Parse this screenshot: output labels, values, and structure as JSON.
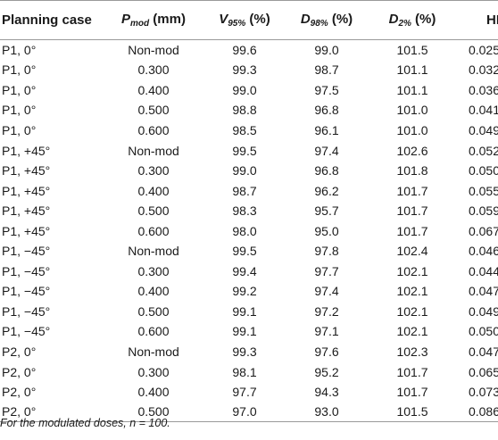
{
  "table": {
    "headers": {
      "planning_case": "Planning case",
      "pmod": {
        "sym": "P",
        "sub": "mod",
        "rest": " (mm)"
      },
      "v95": {
        "sym": "V",
        "sub": "95%",
        "rest": " (%)"
      },
      "d98": {
        "sym": "D",
        "sub": "98%",
        "rest": " (%)"
      },
      "d2": {
        "sym": "D",
        "sub": "2%",
        "rest": " (%)"
      },
      "hi": "HI"
    },
    "rows": [
      [
        "P1, 0°",
        "Non-mod",
        "99.6",
        "99.0",
        "101.5",
        "0.025"
      ],
      [
        "P1, 0°",
        "0.300",
        "99.3",
        "98.7",
        "101.1",
        "0.032"
      ],
      [
        "P1, 0°",
        "0.400",
        "99.0",
        "97.5",
        "101.1",
        "0.036"
      ],
      [
        "P1, 0°",
        "0.500",
        "98.8",
        "96.8",
        "101.0",
        "0.041"
      ],
      [
        "P1, 0°",
        "0.600",
        "98.5",
        "96.1",
        "101.0",
        "0.049"
      ],
      [
        "P1, +45°",
        "Non-mod",
        "99.5",
        "97.4",
        "102.6",
        "0.052"
      ],
      [
        "P1, +45°",
        "0.300",
        "99.0",
        "96.8",
        "101.8",
        "0.050"
      ],
      [
        "P1, +45°",
        "0.400",
        "98.7",
        "96.2",
        "101.7",
        "0.055"
      ],
      [
        "P1, +45°",
        "0.500",
        "98.3",
        "95.7",
        "101.7",
        "0.059"
      ],
      [
        "P1, +45°",
        "0.600",
        "98.0",
        "95.0",
        "101.7",
        "0.067"
      ],
      [
        "P1, −45°",
        "Non-mod",
        "99.5",
        "97.8",
        "102.4",
        "0.046"
      ],
      [
        "P1, −45°",
        "0.300",
        "99.4",
        "97.7",
        "102.1",
        "0.044"
      ],
      [
        "P1, −45°",
        "0.400",
        "99.2",
        "97.4",
        "102.1",
        "0.047"
      ],
      [
        "P1, −45°",
        "0.500",
        "99.1",
        "97.2",
        "102.1",
        "0.049"
      ],
      [
        "P1, −45°",
        "0.600",
        "99.1",
        "97.1",
        "102.1",
        "0.050"
      ],
      [
        "P2, 0°",
        "Non-mod",
        "99.3",
        "97.6",
        "102.3",
        "0.047"
      ],
      [
        "P2, 0°",
        "0.300",
        "98.1",
        "95.2",
        "101.7",
        "0.065"
      ],
      [
        "P2, 0°",
        "0.400",
        "97.7",
        "94.3",
        "101.7",
        "0.073"
      ],
      [
        "P2, 0°",
        "0.500",
        "97.0",
        "93.0",
        "101.5",
        "0.086"
      ]
    ]
  },
  "footnote": {
    "prefix": "For the modulated doses, ",
    "value": "n = 100."
  }
}
